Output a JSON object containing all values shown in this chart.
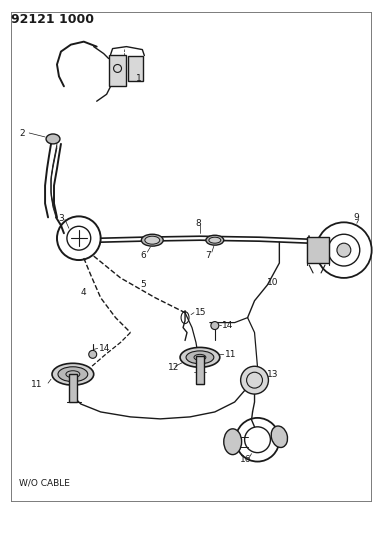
{
  "title": "92121 1000",
  "bg_color": "#ffffff",
  "line_color": "#1a1a1a",
  "text_color": "#1a1a1a",
  "subtitle": "W/O CABLE",
  "figsize": [
    3.82,
    5.33
  ],
  "dpi": 100
}
